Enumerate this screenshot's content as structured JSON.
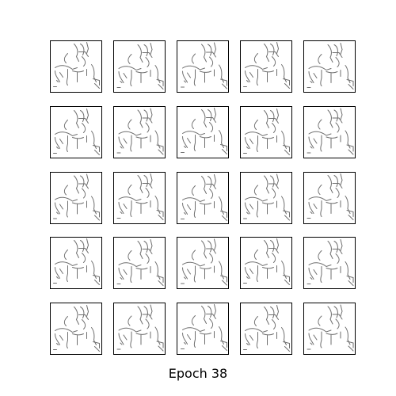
{
  "figure": {
    "caption": "Epoch 38",
    "grid": {
      "rows": 5,
      "cols": 5
    },
    "sample_content": "sketch-line-drawing",
    "colors": {
      "background": "#ffffff",
      "frame": "#000000",
      "stroke": "#6e6e6e"
    }
  }
}
